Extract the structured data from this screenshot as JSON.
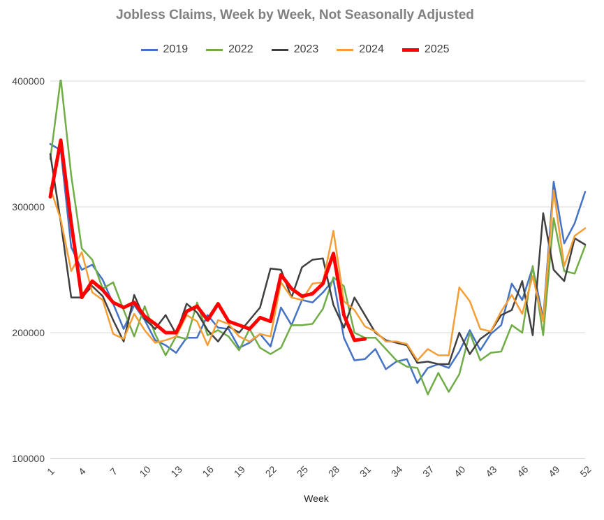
{
  "chart_data": {
    "type": "line",
    "title": "Jobless Claims, Week by Week, Not Seasonally Adjusted",
    "xlabel": "Week",
    "ylabel": "",
    "ylim": [
      100000,
      400000
    ],
    "xlim": [
      1,
      52
    ],
    "x_ticks": [
      "1",
      "4",
      "7",
      "10",
      "13",
      "16",
      "19",
      "22",
      "25",
      "28",
      "31",
      "34",
      "37",
      "40",
      "43",
      "46",
      "49",
      "52"
    ],
    "y_ticks": [
      "100000",
      "200000",
      "300000",
      "400000"
    ],
    "grid": "horizontal",
    "legend_position": "top",
    "series": [
      {
        "name": "2019",
        "color": "#4472c4",
        "width": 2.5,
        "values": [
          350000,
          345000,
          268000,
          250000,
          254000,
          242000,
          223000,
          203000,
          222000,
          210000,
          194000,
          190000,
          184000,
          196000,
          196000,
          214000,
          204000,
          203000,
          188000,
          192000,
          199000,
          189000,
          220000,
          206000,
          226000,
          224000,
          232000,
          242000,
          196000,
          178000,
          179000,
          187000,
          171000,
          177000,
          179000,
          160000,
          172000,
          175000,
          172000,
          185000,
          202000,
          186000,
          199000,
          206000,
          239000,
          226000,
          252000,
          211000,
          320000,
          271000,
          287000,
          312000
        ]
      },
      {
        "name": "2022",
        "color": "#70ad47",
        "width": 2.5,
        "values": [
          338000,
          402000,
          325000,
          267000,
          258000,
          235000,
          240000,
          218000,
          197000,
          221000,
          199000,
          182000,
          197000,
          195000,
          224000,
          198000,
          202000,
          197000,
          186000,
          203000,
          188000,
          183000,
          188000,
          206000,
          206000,
          207000,
          219000,
          244000,
          237000,
          200000,
          196000,
          196000,
          187000,
          178000,
          173000,
          172000,
          151000,
          168000,
          153000,
          167000,
          200000,
          178000,
          184000,
          185000,
          206000,
          200000,
          253000,
          198000,
          291000,
          249000,
          247000,
          269000
        ]
      },
      {
        "name": "2023",
        "color": "#404040",
        "width": 2.5,
        "values": [
          342000,
          288000,
          228000,
          228000,
          237000,
          229000,
          210000,
          193000,
          230000,
          211000,
          203000,
          214000,
          199000,
          223000,
          216000,
          202000,
          193000,
          205000,
          200000,
          210000,
          220000,
          251000,
          250000,
          228000,
          252000,
          258000,
          259000,
          222000,
          204000,
          228000,
          214000,
          200000,
          194000,
          192000,
          190000,
          176000,
          177000,
          175000,
          175000,
          200000,
          183000,
          195000,
          201000,
          214000,
          218000,
          241000,
          198000,
          295000,
          250000,
          241000,
          275000,
          270000
        ]
      },
      {
        "name": "2024",
        "color": "#f59e36",
        "width": 2.5,
        "values": [
          315000,
          290000,
          249000,
          264000,
          232000,
          226000,
          199000,
          195000,
          215000,
          202000,
          192000,
          194000,
          197000,
          214000,
          209000,
          190000,
          210000,
          207000,
          197000,
          193000,
          199000,
          197000,
          240000,
          228000,
          226000,
          239000,
          240000,
          281000,
          225000,
          218000,
          205000,
          201000,
          193000,
          193000,
          191000,
          178000,
          187000,
          182000,
          182000,
          236000,
          225000,
          203000,
          201000,
          217000,
          230000,
          215000,
          245000,
          209000,
          313000,
          253000,
          277000,
          283000
        ]
      },
      {
        "name": "2025",
        "color": "#ff0000",
        "width": 5,
        "values": [
          308000,
          353000,
          287000,
          228000,
          241000,
          234000,
          224000,
          220000,
          224000,
          213000,
          207000,
          200000,
          200000,
          217000,
          221000,
          210000,
          223000,
          209000,
          206000,
          203000,
          212000,
          209000,
          246000,
          235000,
          229000,
          231000,
          239000,
          263000,
          214000,
          194000,
          195000
        ]
      }
    ]
  }
}
